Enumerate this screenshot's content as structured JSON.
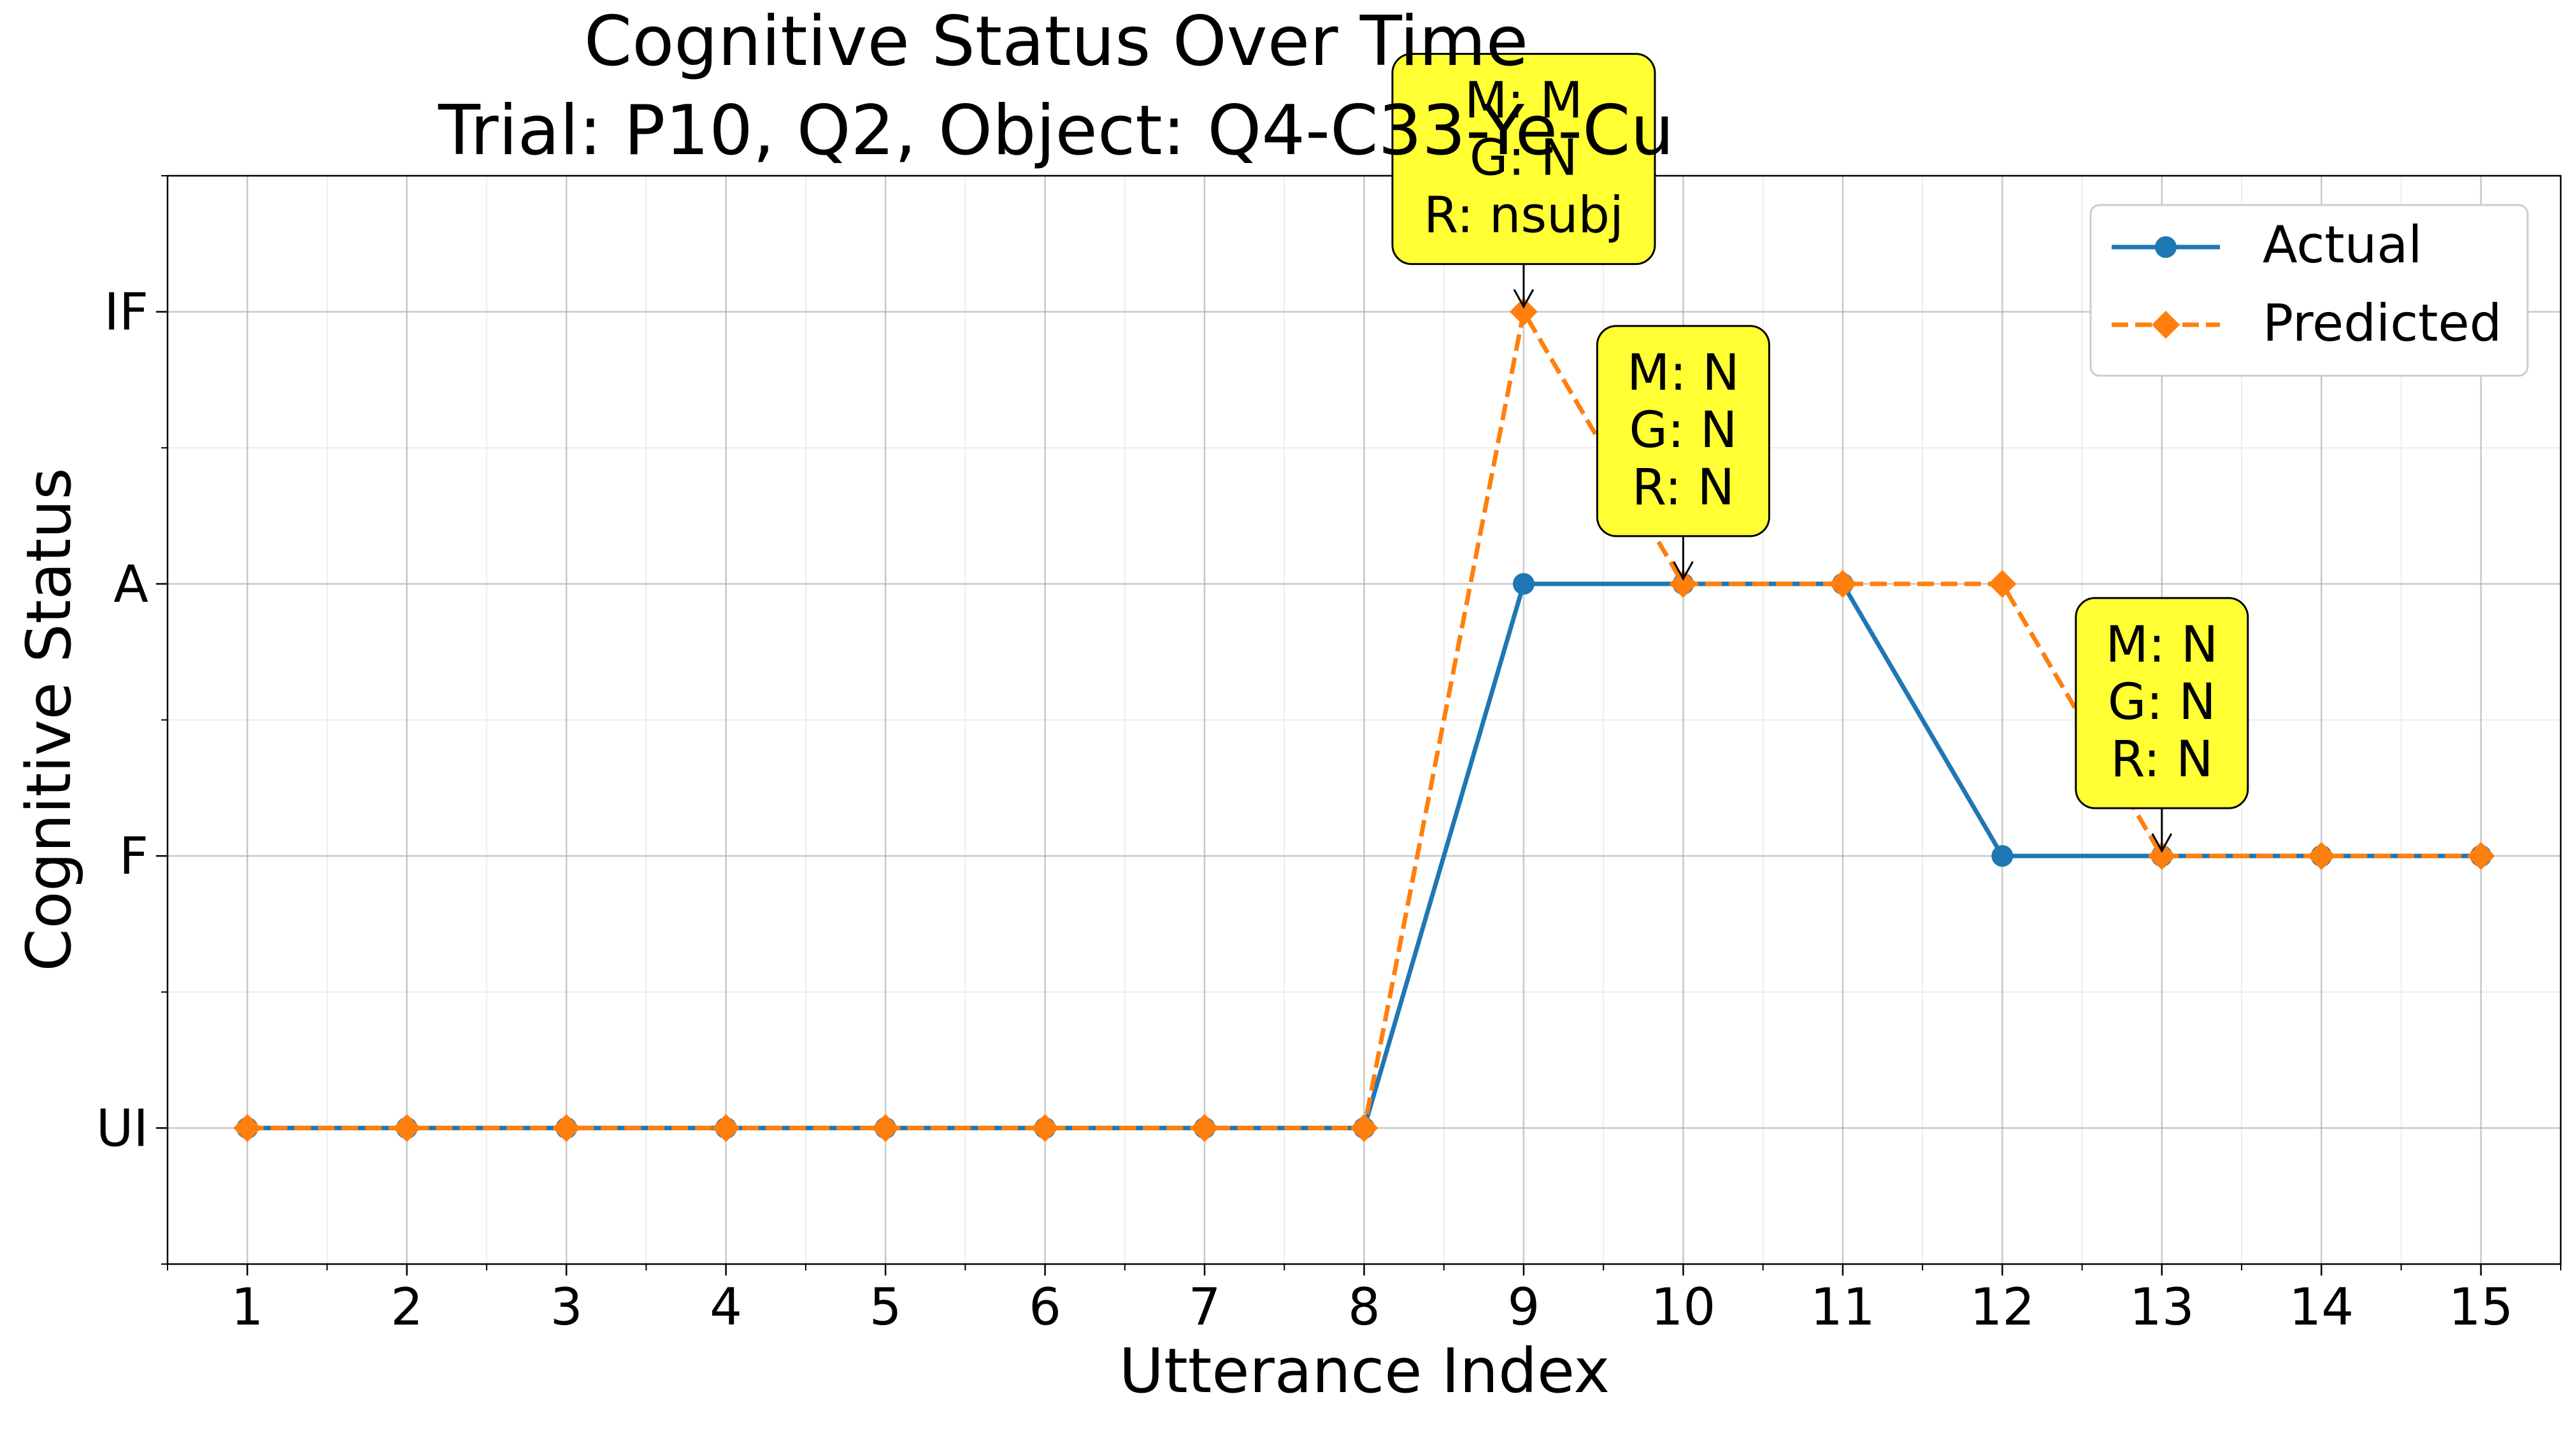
{
  "chart_data": {
    "type": "line",
    "title": "Cognitive Status Over Time",
    "subtitle": "Trial: P10, Q2, Object: Q4-C33-Ye-Cu",
    "xlabel": "Utterance Index",
    "ylabel": "Cognitive Status",
    "x": [
      1,
      2,
      3,
      4,
      5,
      6,
      7,
      8,
      9,
      10,
      11,
      12,
      13,
      14,
      15
    ],
    "y_categories": [
      "UI",
      "F",
      "A",
      "IF"
    ],
    "xlim": [
      0.5,
      15.5
    ],
    "ylim": [
      -0.5,
      3.5
    ],
    "grid": true,
    "legend_position": "top-right",
    "series": [
      {
        "name": "Actual",
        "color": "#1f77b4",
        "marker": "circle",
        "linestyle": "solid",
        "values": [
          "UI",
          "UI",
          "UI",
          "UI",
          "UI",
          "UI",
          "UI",
          "UI",
          "A",
          "A",
          "A",
          "F",
          "F",
          "F",
          "F"
        ]
      },
      {
        "name": "Predicted",
        "color": "#ff7f0e",
        "marker": "diamond",
        "linestyle": "dashed",
        "values": [
          "UI",
          "UI",
          "UI",
          "UI",
          "UI",
          "UI",
          "UI",
          "UI",
          "IF",
          "A",
          "A",
          "A",
          "F",
          "F",
          "F"
        ]
      }
    ],
    "annotations": [
      {
        "x": 9,
        "y": "IF",
        "lines": [
          "M: M",
          "G: N",
          "R: nsubj"
        ],
        "color": "#ffff33"
      },
      {
        "x": 10,
        "y": "A",
        "lines": [
          "M: N",
          "G: N",
          "R: N"
        ],
        "color": "#ffff33"
      },
      {
        "x": 13,
        "y": "F",
        "lines": [
          "M: N",
          "G: N",
          "R: N"
        ],
        "color": "#ffff33"
      }
    ]
  }
}
